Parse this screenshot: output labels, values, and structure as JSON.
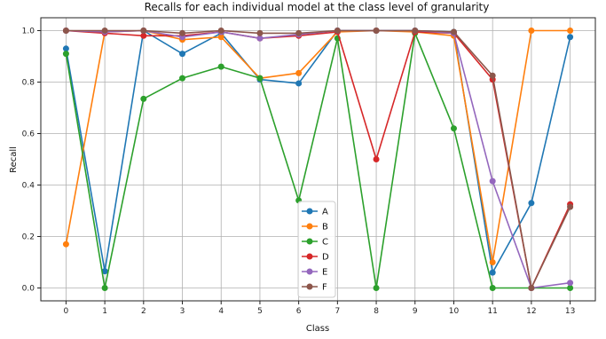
{
  "chart_data": {
    "type": "line",
    "title": "Recalls for each individual model at the class level of granularity",
    "xlabel": "Class",
    "ylabel": "Recall",
    "x": [
      0,
      1,
      2,
      3,
      4,
      5,
      6,
      7,
      8,
      9,
      10,
      11,
      12,
      13
    ],
    "x_ticks": [
      "0",
      "1",
      "2",
      "3",
      "4",
      "5",
      "6",
      "7",
      "8",
      "9",
      "10",
      "11",
      "12",
      "13"
    ],
    "y_ticks": [
      "0.0",
      "0.2",
      "0.4",
      "0.6",
      "0.8",
      "1.0"
    ],
    "xlim": [
      -0.65,
      13.65
    ],
    "ylim": [
      -0.05,
      1.05
    ],
    "grid": true,
    "legend_position": "lower-center",
    "series": [
      {
        "name": "A",
        "color": "#1f77b4",
        "values": [
          0.93,
          0.065,
          1.0,
          0.91,
          0.99,
          0.81,
          0.795,
          1.0,
          1.0,
          1.0,
          0.995,
          0.06,
          0.33,
          0.975
        ]
      },
      {
        "name": "B",
        "color": "#ff7f0e",
        "values": [
          0.17,
          0.995,
          1.0,
          0.965,
          0.975,
          0.815,
          0.835,
          0.995,
          1.0,
          0.995,
          0.98,
          0.1,
          1.0,
          1.0
        ]
      },
      {
        "name": "C",
        "color": "#2ca02c",
        "values": [
          0.91,
          0.0,
          0.735,
          0.815,
          0.86,
          0.815,
          0.34,
          0.97,
          0.0,
          0.99,
          0.62,
          0.0,
          0.0,
          0.0
        ]
      },
      {
        "name": "D",
        "color": "#d62728",
        "values": [
          1.0,
          0.99,
          0.98,
          0.98,
          0.995,
          0.97,
          0.98,
          0.995,
          0.5,
          0.995,
          0.99,
          0.81,
          0.0,
          0.325
        ]
      },
      {
        "name": "E",
        "color": "#9467bd",
        "values": [
          1.0,
          0.995,
          1.0,
          0.975,
          0.995,
          0.97,
          0.985,
          1.0,
          1.0,
          1.0,
          0.99,
          0.415,
          0.0,
          0.02
        ]
      },
      {
        "name": "F",
        "color": "#8c564b",
        "values": [
          1.0,
          1.0,
          1.0,
          0.99,
          1.0,
          0.99,
          0.99,
          1.0,
          1.0,
          1.0,
          0.995,
          0.825,
          0.0,
          0.315
        ]
      }
    ]
  }
}
